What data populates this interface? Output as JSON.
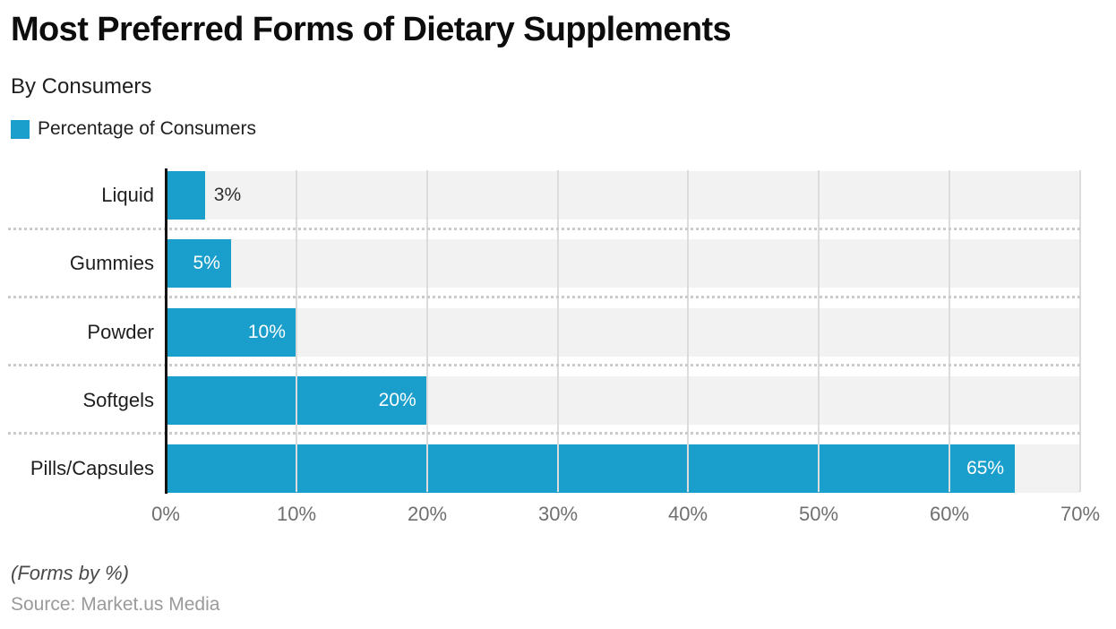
{
  "header": {
    "title": "Most Preferred Forms of Dietary Supplements",
    "subtitle": "By Consumers"
  },
  "legend": {
    "label": "Percentage of Consumers",
    "swatch_color": "#1A9ECC"
  },
  "chart_data": {
    "type": "bar",
    "orientation": "horizontal",
    "title": "Most Preferred Forms of Dietary Supplements",
    "subtitle": "By Consumers",
    "series_name": "Percentage of Consumers",
    "categories": [
      "Liquid",
      "Gummies",
      "Powder",
      "Softgels",
      "Pills/Capsules"
    ],
    "values": [
      3,
      5,
      10,
      20,
      65
    ],
    "value_labels": [
      "3%",
      "5%",
      "10%",
      "20%",
      "65%"
    ],
    "xlim": [
      0,
      70
    ],
    "tick_values": [
      0,
      10,
      20,
      30,
      40,
      50,
      60,
      70
    ],
    "tick_labels": [
      "0%",
      "10%",
      "20%",
      "30%",
      "40%",
      "50%",
      "60%",
      "70%"
    ],
    "grid": true,
    "legend_position": "top-left",
    "bar_color": "#1A9ECC",
    "band_color": "#F2F2F2"
  },
  "footer": {
    "note": "(Forms by %)",
    "source": "Source: Market.us Media"
  }
}
